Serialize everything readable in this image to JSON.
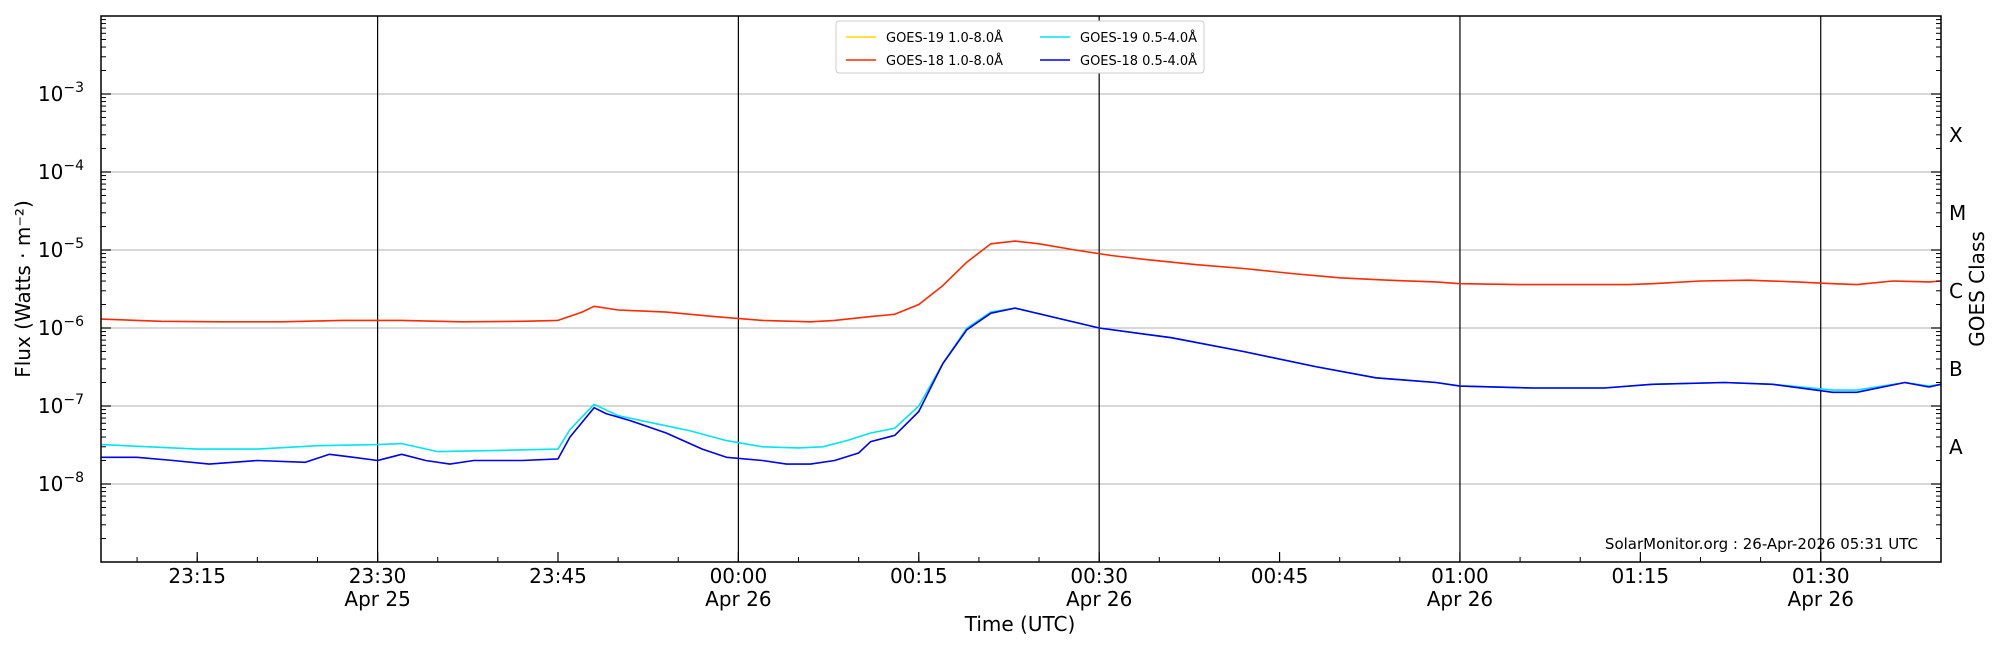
{
  "chart_data": {
    "type": "line",
    "xlabel": "Time (UTC)",
    "ylabel": "Flux (Watts · m⁻²)",
    "y2label": "GOES Class",
    "yscale": "log",
    "ylim": [
      1e-09,
      0.01
    ],
    "xlim": [
      "2026-04-25 23:07",
      "2026-04-26 01:40"
    ],
    "grid": "horizontal at decades",
    "legend_position": "top-center",
    "credit": "SolarMonitor.org : 26-Apr-2026 05:31 UTC",
    "y_ticks": [
      {
        "value": 1e-08,
        "base": "10",
        "exp": "−8"
      },
      {
        "value": 1e-07,
        "base": "10",
        "exp": "−7"
      },
      {
        "value": 1e-06,
        "base": "10",
        "exp": "−6"
      },
      {
        "value": 1e-05,
        "base": "10",
        "exp": "−5"
      },
      {
        "value": 0.0001,
        "base": "10",
        "exp": "−4"
      },
      {
        "value": 0.001,
        "base": "10",
        "exp": "−3"
      }
    ],
    "x_ticks": [
      {
        "time": "2026-04-25 23:15",
        "label": "23:15",
        "date": "",
        "vline": false
      },
      {
        "time": "2026-04-25 23:30",
        "label": "23:30",
        "date": "Apr 25",
        "vline": true
      },
      {
        "time": "2026-04-25 23:45",
        "label": "23:45",
        "date": "",
        "vline": false
      },
      {
        "time": "2026-04-26 00:00",
        "label": "00:00",
        "date": "Apr 26",
        "vline": true
      },
      {
        "time": "2026-04-26 00:15",
        "label": "00:15",
        "date": "",
        "vline": false
      },
      {
        "time": "2026-04-26 00:30",
        "label": "00:30",
        "date": "Apr 26",
        "vline": true
      },
      {
        "time": "2026-04-26 00:45",
        "label": "00:45",
        "date": "",
        "vline": false
      },
      {
        "time": "2026-04-26 01:00",
        "label": "01:00",
        "date": "Apr 26",
        "vline": true
      },
      {
        "time": "2026-04-26 01:15",
        "label": "01:15",
        "date": "",
        "vline": false
      },
      {
        "time": "2026-04-26 01:30",
        "label": "01:30",
        "date": "Apr 26",
        "vline": true
      }
    ],
    "goes_classes": [
      {
        "label": "X",
        "flux": 0.0003
      },
      {
        "label": "M",
        "flux": 3e-05
      },
      {
        "label": "C",
        "flux": 3e-06
      },
      {
        "label": "B",
        "flux": 3e-07
      },
      {
        "label": "A",
        "flux": 3e-08
      }
    ],
    "series": [
      {
        "name": "GOES-19 1.0-8.0Å",
        "color": "#ffd700",
        "x": [],
        "y": []
      },
      {
        "name": "GOES-18 1.0-8.0Å",
        "color": "#ff2a00",
        "x": [
          "2026-04-25 23:07",
          "2026-04-25 23:12",
          "2026-04-25 23:17",
          "2026-04-25 23:22",
          "2026-04-25 23:27",
          "2026-04-25 23:32",
          "2026-04-25 23:37",
          "2026-04-25 23:42",
          "2026-04-25 23:45",
          "2026-04-25 23:47",
          "2026-04-25 23:48",
          "2026-04-25 23:50",
          "2026-04-25 23:54",
          "2026-04-25 23:58",
          "2026-04-26 00:02",
          "2026-04-26 00:06",
          "2026-04-26 00:08",
          "2026-04-26 00:11",
          "2026-04-26 00:13",
          "2026-04-26 00:15",
          "2026-04-26 00:17",
          "2026-04-26 00:19",
          "2026-04-26 00:21",
          "2026-04-26 00:23",
          "2026-04-26 00:25",
          "2026-04-26 00:28",
          "2026-04-26 00:31",
          "2026-04-26 00:34",
          "2026-04-26 00:38",
          "2026-04-26 00:42",
          "2026-04-26 00:46",
          "2026-04-26 00:50",
          "2026-04-26 00:54",
          "2026-04-26 00:58",
          "2026-04-26 01:00",
          "2026-04-26 01:05",
          "2026-04-26 01:10",
          "2026-04-26 01:14",
          "2026-04-26 01:16",
          "2026-04-26 01:20",
          "2026-04-26 01:24",
          "2026-04-26 01:28",
          "2026-04-26 01:31",
          "2026-04-26 01:33",
          "2026-04-26 01:36",
          "2026-04-26 01:39",
          "2026-04-26 01:40"
        ],
        "y": [
          1.3e-06,
          1.22e-06,
          1.2e-06,
          1.2e-06,
          1.25e-06,
          1.25e-06,
          1.2e-06,
          1.22e-06,
          1.25e-06,
          1.6e-06,
          1.9e-06,
          1.7e-06,
          1.6e-06,
          1.4e-06,
          1.25e-06,
          1.2e-06,
          1.25e-06,
          1.4e-06,
          1.5e-06,
          2e-06,
          3.5e-06,
          7e-06,
          1.2e-05,
          1.3e-05,
          1.2e-05,
          1e-05,
          8.5e-06,
          7.5e-06,
          6.5e-06,
          5.8e-06,
          5e-06,
          4.4e-06,
          4.1e-06,
          3.9e-06,
          3.7e-06,
          3.6e-06,
          3.6e-06,
          3.6e-06,
          3.7e-06,
          4e-06,
          4.1e-06,
          3.9e-06,
          3.7e-06,
          3.6e-06,
          4e-06,
          3.9e-06,
          4e-06
        ]
      },
      {
        "name": "GOES-19 0.5-4.0Å",
        "color": "#00e5ee",
        "x": [
          "2026-04-25 23:07",
          "2026-04-25 23:11",
          "2026-04-25 23:15",
          "2026-04-25 23:20",
          "2026-04-25 23:25",
          "2026-04-25 23:30",
          "2026-04-25 23:32",
          "2026-04-25 23:35",
          "2026-04-25 23:40",
          "2026-04-25 23:45",
          "2026-04-25 23:46",
          "2026-04-25 23:48",
          "2026-04-25 23:50",
          "2026-04-25 23:53",
          "2026-04-25 23:56",
          "2026-04-25 23:59",
          "2026-04-26 00:02",
          "2026-04-26 00:05",
          "2026-04-26 00:07",
          "2026-04-26 00:09",
          "2026-04-26 00:11",
          "2026-04-26 00:13",
          "2026-04-26 00:15",
          "2026-04-26 00:17",
          "2026-04-26 00:19",
          "2026-04-26 00:21",
          "2026-04-26 00:23",
          "2026-04-26 00:26",
          "2026-04-26 00:30",
          "2026-04-26 00:36",
          "2026-04-26 00:42",
          "2026-04-26 00:48",
          "2026-04-26 00:53",
          "2026-04-26 00:58",
          "2026-04-26 01:00",
          "2026-04-26 01:06",
          "2026-04-26 01:12",
          "2026-04-26 01:16",
          "2026-04-26 01:22",
          "2026-04-26 01:26",
          "2026-04-26 01:31",
          "2026-04-26 01:33",
          "2026-04-26 01:37",
          "2026-04-26 01:39",
          "2026-04-26 01:40"
        ],
        "y": [
          3.2e-08,
          3e-08,
          2.8e-08,
          2.8e-08,
          3.1e-08,
          3.2e-08,
          3.3e-08,
          2.6e-08,
          2.7e-08,
          2.8e-08,
          5e-08,
          1.05e-07,
          7.5e-08,
          6e-08,
          4.8e-08,
          3.6e-08,
          3e-08,
          2.9e-08,
          3e-08,
          3.6e-08,
          4.5e-08,
          5.2e-08,
          1e-07,
          3.5e-07,
          1e-06,
          1.6e-06,
          1.8e-06,
          1.4e-06,
          1e-06,
          7.5e-07,
          5e-07,
          3.2e-07,
          2.3e-07,
          2e-07,
          1.8e-07,
          1.7e-07,
          1.7e-07,
          1.9e-07,
          2e-07,
          1.9e-07,
          1.6e-07,
          1.6e-07,
          2e-07,
          1.8e-07,
          1.9e-07
        ]
      },
      {
        "name": "GOES-18 0.5-4.0Å",
        "color": "#0000ee",
        "x": [
          "2026-04-25 23:07",
          "2026-04-25 23:10",
          "2026-04-25 23:13",
          "2026-04-25 23:16",
          "2026-04-25 23:20",
          "2026-04-25 23:24",
          "2026-04-25 23:26",
          "2026-04-25 23:28",
          "2026-04-25 23:30",
          "2026-04-25 23:32",
          "2026-04-25 23:34",
          "2026-04-25 23:36",
          "2026-04-25 23:38",
          "2026-04-25 23:40",
          "2026-04-25 23:42",
          "2026-04-25 23:45",
          "2026-04-25 23:46",
          "2026-04-25 23:48",
          "2026-04-25 23:49",
          "2026-04-25 23:51",
          "2026-04-25 23:54",
          "2026-04-25 23:57",
          "2026-04-25 23:59",
          "2026-04-26 00:02",
          "2026-04-26 00:04",
          "2026-04-26 00:06",
          "2026-04-26 00:08",
          "2026-04-26 00:10",
          "2026-04-26 00:11",
          "2026-04-26 00:13",
          "2026-04-26 00:15",
          "2026-04-26 00:17",
          "2026-04-26 00:19",
          "2026-04-26 00:21",
          "2026-04-26 00:23",
          "2026-04-26 00:26",
          "2026-04-26 00:30",
          "2026-04-26 00:36",
          "2026-04-26 00:42",
          "2026-04-26 00:48",
          "2026-04-26 00:53",
          "2026-04-26 00:58",
          "2026-04-26 01:00",
          "2026-04-26 01:06",
          "2026-04-26 01:12",
          "2026-04-26 01:16",
          "2026-04-26 01:22",
          "2026-04-26 01:26",
          "2026-04-26 01:31",
          "2026-04-26 01:33",
          "2026-04-26 01:37",
          "2026-04-26 01:39",
          "2026-04-26 01:40"
        ],
        "y": [
          2.2e-08,
          2.2e-08,
          2e-08,
          1.8e-08,
          2e-08,
          1.9e-08,
          2.4e-08,
          2.2e-08,
          2e-08,
          2.4e-08,
          2e-08,
          1.8e-08,
          2e-08,
          2e-08,
          2e-08,
          2.1e-08,
          4e-08,
          9.5e-08,
          8e-08,
          6.5e-08,
          4.5e-08,
          2.8e-08,
          2.2e-08,
          2e-08,
          1.8e-08,
          1.8e-08,
          2e-08,
          2.5e-08,
          3.5e-08,
          4.2e-08,
          8.5e-08,
          3.5e-07,
          9.5e-07,
          1.55e-06,
          1.8e-06,
          1.4e-06,
          1e-06,
          7.5e-07,
          5e-07,
          3.2e-07,
          2.3e-07,
          2e-07,
          1.8e-07,
          1.7e-07,
          1.7e-07,
          1.9e-07,
          2e-07,
          1.9e-07,
          1.5e-07,
          1.5e-07,
          2e-07,
          1.75e-07,
          1.9e-07
        ]
      }
    ]
  }
}
